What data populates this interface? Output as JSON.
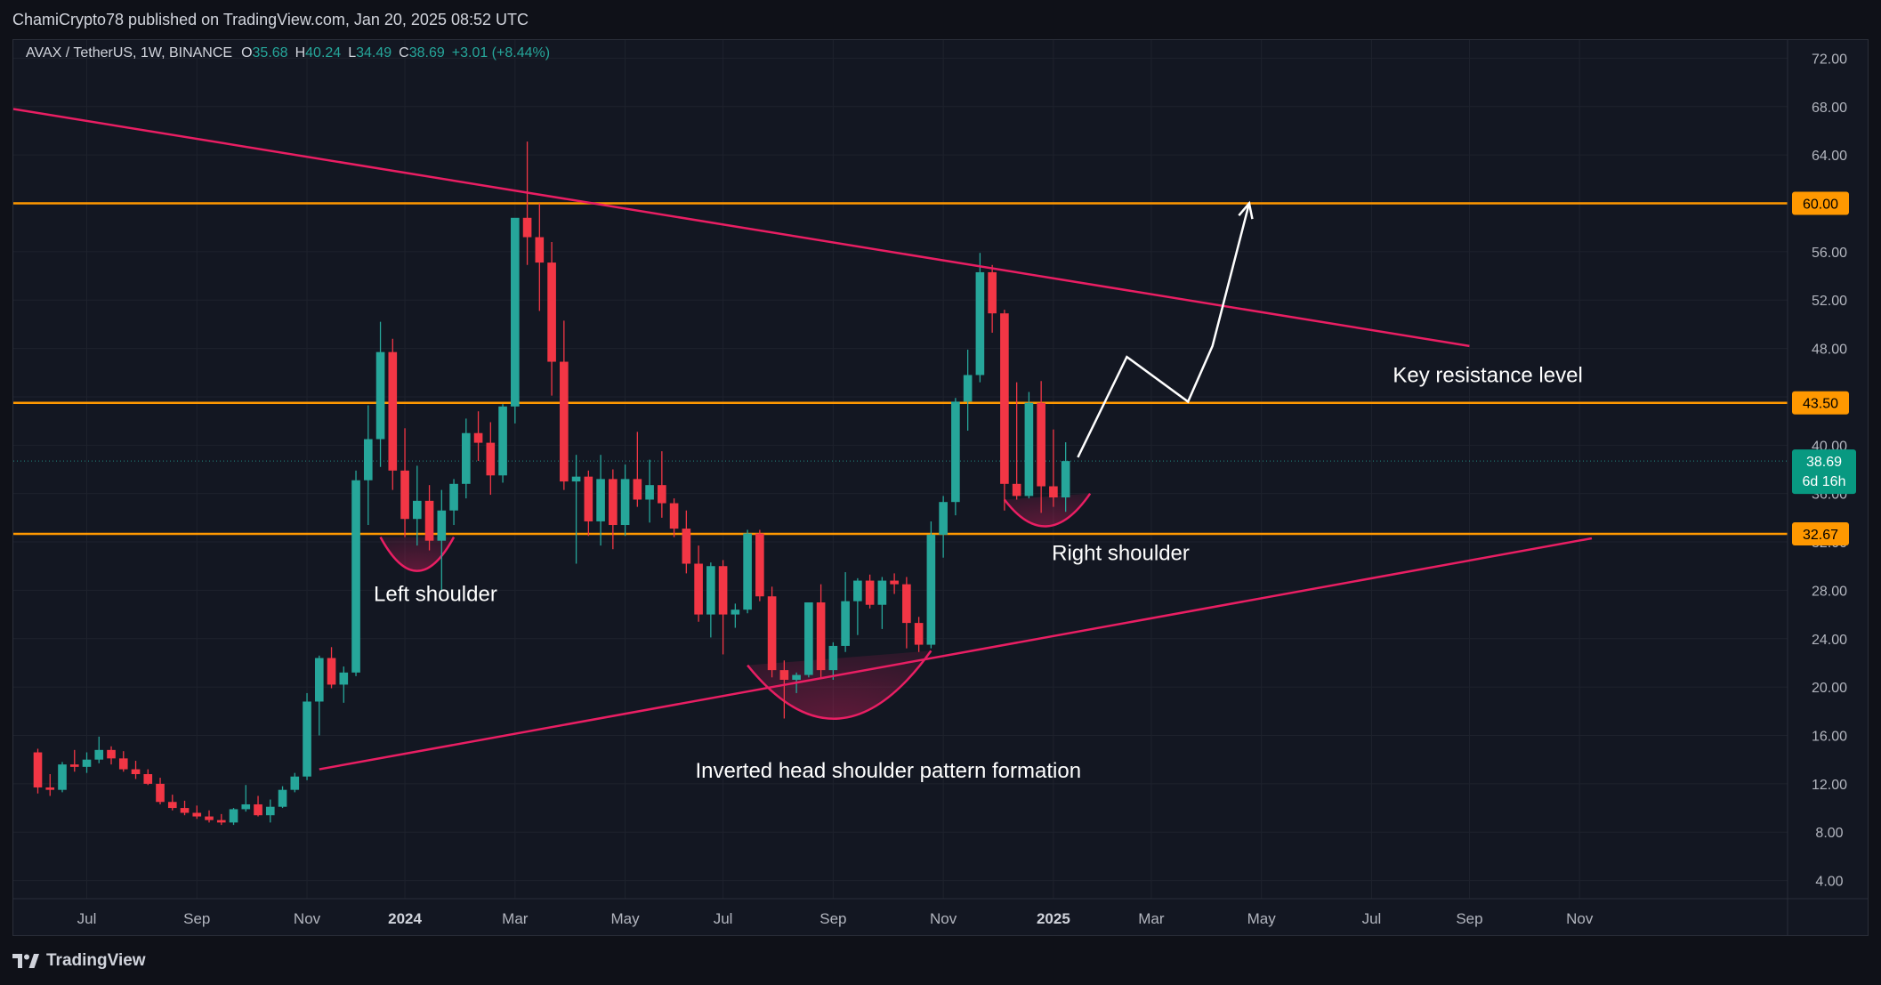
{
  "header": {
    "publisher_line": "ChamiCrypto78 published on TradingView.com, Jan 20, 2025 08:52 UTC"
  },
  "legend": {
    "symbol": "AVAX / TetherUS, 1W, BINANCE",
    "open_label": "O",
    "open": "35.68",
    "high_label": "H",
    "high": "40.24",
    "low_label": "L",
    "low": "34.49",
    "close_label": "C",
    "close": "38.69",
    "change": "+3.01 (+8.44%)"
  },
  "footer": {
    "brand": "TradingView"
  },
  "colors": {
    "background": "#131722",
    "grid": "#1e222d",
    "up": "#26a69a",
    "down": "#f23645",
    "level_line": "#ff9800",
    "trend_line": "#e91e63",
    "text": "#d1d4dc"
  },
  "chart_data": {
    "type": "candlestick",
    "timeframe": "1W",
    "y_axis": {
      "ylim": [
        2.5,
        73.5
      ],
      "ticks": [
        "4.00",
        "8.00",
        "12.00",
        "16.00",
        "20.00",
        "24.00",
        "28.00",
        "32.00",
        "36.00",
        "40.00",
        "44.00",
        "48.00",
        "52.00",
        "56.00",
        "60.00",
        "64.00",
        "68.00",
        "72.00"
      ]
    },
    "x_axis": {
      "week_range": [
        -2,
        143
      ],
      "ticks": [
        {
          "label": "Jul",
          "week": 4,
          "bold": false
        },
        {
          "label": "Sep",
          "week": 13,
          "bold": false
        },
        {
          "label": "Nov",
          "week": 22,
          "bold": false
        },
        {
          "label": "2024",
          "week": 30,
          "bold": true
        },
        {
          "label": "Mar",
          "week": 39,
          "bold": false
        },
        {
          "label": "May",
          "week": 48,
          "bold": false
        },
        {
          "label": "Jul",
          "week": 56,
          "bold": false
        },
        {
          "label": "Sep",
          "week": 65,
          "bold": false
        },
        {
          "label": "Nov",
          "week": 74,
          "bold": false
        },
        {
          "label": "2025",
          "week": 83,
          "bold": true
        },
        {
          "label": "Mar",
          "week": 91,
          "bold": false
        },
        {
          "label": "May",
          "week": 100,
          "bold": false
        },
        {
          "label": "Jul",
          "week": 109,
          "bold": false
        },
        {
          "label": "Sep",
          "week": 117,
          "bold": false
        },
        {
          "label": "Nov",
          "week": 126,
          "bold": false
        }
      ]
    },
    "candles": [
      [
        14.6,
        14.9,
        11.2,
        11.7
      ],
      [
        11.7,
        12.8,
        11.0,
        11.5
      ],
      [
        11.5,
        13.8,
        11.3,
        13.6
      ],
      [
        13.6,
        14.8,
        13.0,
        13.4
      ],
      [
        13.4,
        14.6,
        12.9,
        14.0
      ],
      [
        14.0,
        15.9,
        13.7,
        14.8
      ],
      [
        14.8,
        15.1,
        13.6,
        14.1
      ],
      [
        14.1,
        14.7,
        13.0,
        13.2
      ],
      [
        13.2,
        13.9,
        12.4,
        12.8
      ],
      [
        12.8,
        13.2,
        11.9,
        12.0
      ],
      [
        12.0,
        12.5,
        10.3,
        10.5
      ],
      [
        10.5,
        11.1,
        9.8,
        10.0
      ],
      [
        10.0,
        10.6,
        9.4,
        9.6
      ],
      [
        9.6,
        10.2,
        9.1,
        9.3
      ],
      [
        9.3,
        9.8,
        8.8,
        9.0
      ],
      [
        9.0,
        9.5,
        8.6,
        8.8
      ],
      [
        8.8,
        10.0,
        8.6,
        9.9
      ],
      [
        9.9,
        11.9,
        9.7,
        10.3
      ],
      [
        10.3,
        11.0,
        9.3,
        9.4
      ],
      [
        9.4,
        10.7,
        8.8,
        10.1
      ],
      [
        10.1,
        11.8,
        10.0,
        11.5
      ],
      [
        11.5,
        12.9,
        11.3,
        12.6
      ],
      [
        12.6,
        19.5,
        12.3,
        18.8
      ],
      [
        18.8,
        22.6,
        16.0,
        22.4
      ],
      [
        22.4,
        23.3,
        19.9,
        20.2
      ],
      [
        20.2,
        21.7,
        18.7,
        21.2
      ],
      [
        21.2,
        37.9,
        20.9,
        37.1
      ],
      [
        37.1,
        43.3,
        33.4,
        40.5
      ],
      [
        40.5,
        50.2,
        38.2,
        47.7
      ],
      [
        47.7,
        48.8,
        36.3,
        37.9
      ],
      [
        37.9,
        41.4,
        32.4,
        33.9
      ],
      [
        33.9,
        38.3,
        31.7,
        35.4
      ],
      [
        35.4,
        36.7,
        31.3,
        32.1
      ],
      [
        32.1,
        36.3,
        27.9,
        34.6
      ],
      [
        34.6,
        37.2,
        33.4,
        36.8
      ],
      [
        36.8,
        42.2,
        35.6,
        41.0
      ],
      [
        41.0,
        42.8,
        38.7,
        40.2
      ],
      [
        40.2,
        41.9,
        35.9,
        37.5
      ],
      [
        37.5,
        43.4,
        36.9,
        43.2
      ],
      [
        43.2,
        58.3,
        41.8,
        58.8
      ],
      [
        58.8,
        65.1,
        54.9,
        57.2
      ],
      [
        57.2,
        60.0,
        51.1,
        55.1
      ],
      [
        55.1,
        56.8,
        44.1,
        46.9
      ],
      [
        46.9,
        50.3,
        36.3,
        37.0
      ],
      [
        37.0,
        39.2,
        30.2,
        37.4
      ],
      [
        37.4,
        37.9,
        32.5,
        33.7
      ],
      [
        33.7,
        39.2,
        31.7,
        37.2
      ],
      [
        37.2,
        38.0,
        31.4,
        33.4
      ],
      [
        33.4,
        38.4,
        32.5,
        37.2
      ],
      [
        37.2,
        41.1,
        34.9,
        35.5
      ],
      [
        35.5,
        38.8,
        33.6,
        36.7
      ],
      [
        36.7,
        39.5,
        34.0,
        35.2
      ],
      [
        35.2,
        35.6,
        32.4,
        33.1
      ],
      [
        33.1,
        34.6,
        29.4,
        30.2
      ],
      [
        30.2,
        31.7,
        25.4,
        26.0
      ],
      [
        26.0,
        30.3,
        24.1,
        30.0
      ],
      [
        30.0,
        30.5,
        22.7,
        26.0
      ],
      [
        26.0,
        26.9,
        24.9,
        26.4
      ],
      [
        26.4,
        33.0,
        26.1,
        32.7
      ],
      [
        32.7,
        33.0,
        27.1,
        27.5
      ],
      [
        27.5,
        28.3,
        20.8,
        21.4
      ],
      [
        21.4,
        22.2,
        17.4,
        20.6
      ],
      [
        20.6,
        21.2,
        19.5,
        21.0
      ],
      [
        21.0,
        26.3,
        20.8,
        27.0
      ],
      [
        27.0,
        28.5,
        20.8,
        21.4
      ],
      [
        21.4,
        23.7,
        20.6,
        23.4
      ],
      [
        23.4,
        29.5,
        22.9,
        27.1
      ],
      [
        27.1,
        29.0,
        24.3,
        28.8
      ],
      [
        28.8,
        29.3,
        26.5,
        26.8
      ],
      [
        26.8,
        29.1,
        24.8,
        28.8
      ],
      [
        28.8,
        29.4,
        27.7,
        28.5
      ],
      [
        28.5,
        29.1,
        23.2,
        25.3
      ],
      [
        25.3,
        25.8,
        22.9,
        23.5
      ],
      [
        23.5,
        33.7,
        23.2,
        32.6
      ],
      [
        32.6,
        35.8,
        30.7,
        35.3
      ],
      [
        35.3,
        43.9,
        34.2,
        43.6
      ],
      [
        43.6,
        47.9,
        41.2,
        45.8
      ],
      [
        45.8,
        55.9,
        45.2,
        54.3
      ],
      [
        54.3,
        54.9,
        49.3,
        50.9
      ],
      [
        50.9,
        51.2,
        34.6,
        36.8
      ],
      [
        36.8,
        45.2,
        35.5,
        35.8
      ],
      [
        35.8,
        44.4,
        35.6,
        43.5
      ],
      [
        43.5,
        45.3,
        34.4,
        36.6
      ],
      [
        36.6,
        41.3,
        34.9,
        35.68
      ],
      [
        35.68,
        40.24,
        34.49,
        38.69
      ]
    ],
    "horizontal_levels": [
      {
        "value": 60.0,
        "label": "60.00"
      },
      {
        "value": 43.5,
        "label": "43.50"
      },
      {
        "value": 32.67,
        "label": "32.67"
      }
    ],
    "last_price": {
      "value": 38.69,
      "label": "38.69",
      "countdown": "6d 16h"
    },
    "trend_lines": [
      {
        "name": "descending-resistance",
        "points": [
          [
            -2,
            67.8
          ],
          [
            117,
            48.2
          ]
        ]
      },
      {
        "name": "ascending-support",
        "points": [
          [
            23,
            13.2
          ],
          [
            127,
            32.3
          ]
        ]
      }
    ],
    "projection_path": [
      [
        85,
        39.0
      ],
      [
        89,
        47.3
      ],
      [
        94,
        43.6
      ],
      [
        96,
        48.2
      ],
      [
        99,
        60.0
      ]
    ],
    "shoulder_arcs": [
      {
        "name": "left-shoulder-arc",
        "from": [
          28,
          32.4
        ],
        "to": [
          34,
          32.4
        ],
        "bottom": 29.6
      },
      {
        "name": "head-arc",
        "from": [
          58,
          21.8
        ],
        "to": [
          73,
          23.0
        ],
        "bottom": 17.4
      },
      {
        "name": "right-shoulder-arc",
        "from": [
          79,
          35.5
        ],
        "to": [
          86,
          36.0
        ],
        "bottom": 33.3
      }
    ],
    "annotations": [
      {
        "text": "Key resistance level",
        "week": 118.5,
        "price": 45.2
      },
      {
        "text": "Left shoulder",
        "week": 32.5,
        "price": 27.1
      },
      {
        "text": "Right shoulder",
        "week": 88.5,
        "price": 30.5
      },
      {
        "text": "Inverted head shoulder pattern formation",
        "week": 69.5,
        "price": 12.5
      }
    ]
  }
}
